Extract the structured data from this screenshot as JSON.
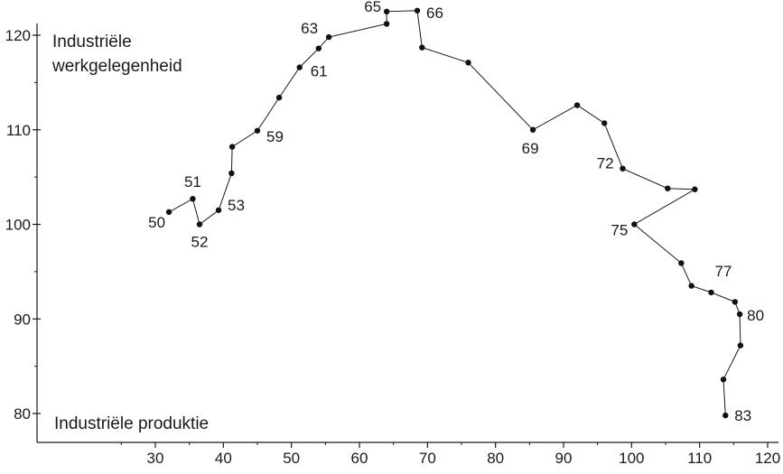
{
  "chart_data": {
    "type": "scatter",
    "connected": true,
    "xlabel": "Industriële produktie",
    "ylabel_lines": [
      "Industriële",
      "werkgelegenheid"
    ],
    "xlim": [
      20,
      120
    ],
    "ylim": [
      76,
      122
    ],
    "x_ticks": [
      30,
      40,
      50,
      60,
      70,
      80,
      90,
      100,
      110,
      120
    ],
    "y_ticks": [
      80,
      90,
      100,
      110,
      120
    ],
    "series": [
      {
        "points": [
          {
            "x": 32,
            "y": 101.3,
            "label": "50"
          },
          {
            "x": 35.5,
            "y": 102.7,
            "label": "51"
          },
          {
            "x": 36.5,
            "y": 100,
            "label": "52"
          },
          {
            "x": 39.3,
            "y": 101.5,
            "label": "53"
          },
          {
            "x": 41.2,
            "y": 105.4,
            "label": ""
          },
          {
            "x": 41.3,
            "y": 108.2,
            "label": ""
          },
          {
            "x": 45,
            "y": 109.9,
            "label": "59"
          },
          {
            "x": 48.2,
            "y": 113.4,
            "label": ""
          },
          {
            "x": 51.2,
            "y": 116.6,
            "label": "61"
          },
          {
            "x": 54,
            "y": 118.6,
            "label": ""
          },
          {
            "x": 55.5,
            "y": 119.8,
            "label": "63"
          },
          {
            "x": 64,
            "y": 121.2,
            "label": ""
          },
          {
            "x": 64,
            "y": 122.5,
            "label": "65"
          },
          {
            "x": 68.5,
            "y": 122.6,
            "label": "66"
          },
          {
            "x": 69.2,
            "y": 118.7,
            "label": ""
          },
          {
            "x": 76,
            "y": 117.1,
            "label": ""
          },
          {
            "x": 85.5,
            "y": 110,
            "label": "69"
          },
          {
            "x": 92,
            "y": 112.6,
            "label": ""
          },
          {
            "x": 96,
            "y": 110.7,
            "label": ""
          },
          {
            "x": 98.7,
            "y": 105.9,
            "label": "72"
          },
          {
            "x": 105.3,
            "y": 103.8,
            "label": ""
          },
          {
            "x": 109.3,
            "y": 103.7,
            "label": ""
          },
          {
            "x": 100.4,
            "y": 100,
            "label": "75"
          },
          {
            "x": 107.3,
            "y": 95.9,
            "label": ""
          },
          {
            "x": 108.8,
            "y": 93.5,
            "label": ""
          },
          {
            "x": 111.7,
            "y": 92.8,
            "label": "77"
          },
          {
            "x": 115.2,
            "y": 91.8,
            "label": ""
          },
          {
            "x": 115.9,
            "y": 90.5,
            "label": "80"
          },
          {
            "x": 116,
            "y": 87.2,
            "label": ""
          },
          {
            "x": 113.5,
            "y": 83.6,
            "label": ""
          },
          {
            "x": 113.8,
            "y": 79.8,
            "label": "83"
          }
        ]
      }
    ],
    "grid": false,
    "legend": "none"
  }
}
